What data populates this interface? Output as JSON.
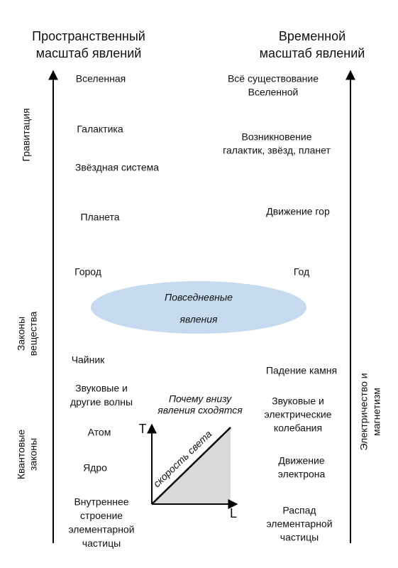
{
  "left_header": [
    "Пространственный",
    "масштаб явлений"
  ],
  "right_header": [
    "Временной",
    "масштаб явлений"
  ],
  "left_items": [
    [
      "Вселенная"
    ],
    [
      "Галактика"
    ],
    [
      "Звёздная система"
    ],
    [
      "Планета"
    ],
    [
      "Город"
    ],
    [
      "Чайник"
    ],
    [
      "Звуковые и",
      "другие волны"
    ],
    [
      "Атом"
    ],
    [
      "Ядро"
    ],
    [
      "Внутреннее",
      "строение",
      "элементарной",
      "частицы"
    ]
  ],
  "right_items": [
    [
      "Всё существование",
      "Вселенной"
    ],
    [
      "Возникновение",
      "галактик, звёзд, планет"
    ],
    [
      "Движение гор"
    ],
    [
      "Год"
    ],
    [
      "Падение камня"
    ],
    [
      "Звуковые и",
      "электрические",
      "колебания"
    ],
    [
      "Движение",
      "электрона"
    ],
    [
      "Распад",
      "элементарной",
      "частицы"
    ]
  ],
  "left_forces": [
    [
      "Гравитация"
    ],
    [
      "Законы",
      "вещества"
    ],
    [
      "Квантовые",
      "законы"
    ]
  ],
  "right_force": [
    "Электричество и",
    "магнетизм"
  ],
  "everyday": [
    "Повседневные",
    "явления"
  ],
  "inset": {
    "title": [
      "Почему внизу",
      "явления сходятся"
    ],
    "y_axis": "T",
    "x_axis": "L",
    "diagonal": "скорость света"
  }
}
